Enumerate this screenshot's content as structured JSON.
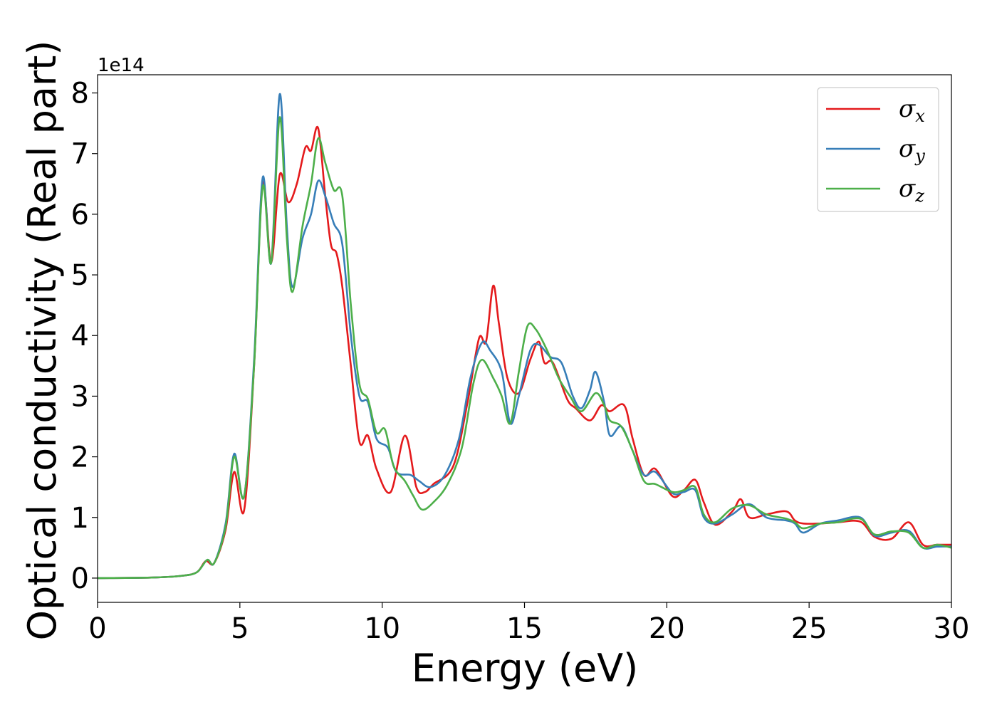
{
  "chart_data": {
    "type": "line",
    "title": "",
    "xlabel": "Energy (eV)",
    "ylabel": "Optical conductivity (Real part)",
    "y_offset_label": "1e14",
    "xlim": [
      0,
      30
    ],
    "ylim": [
      -0.4,
      8.3
    ],
    "x_ticks": [
      0,
      5,
      10,
      15,
      20,
      25,
      30
    ],
    "x_tick_labels": [
      "0",
      "5",
      "10",
      "15",
      "20",
      "25",
      "30"
    ],
    "y_ticks": [
      0,
      1,
      2,
      3,
      4,
      5,
      6,
      7,
      8
    ],
    "y_tick_labels": [
      "0",
      "1",
      "2",
      "3",
      "4",
      "5",
      "6",
      "7",
      "8"
    ],
    "grid": false,
    "legend_position": "top-right",
    "series": [
      {
        "name": "σx",
        "symbol": "σ",
        "subscript": "x",
        "color": "#e41a1c",
        "points": [
          [
            0,
            0
          ],
          [
            2,
            0.01
          ],
          [
            3,
            0.04
          ],
          [
            3.5,
            0.1
          ],
          [
            3.8,
            0.28
          ],
          [
            4.1,
            0.25
          ],
          [
            4.5,
            0.8
          ],
          [
            4.8,
            1.75
          ],
          [
            5.15,
            1.12
          ],
          [
            5.5,
            3.5
          ],
          [
            5.8,
            6.5
          ],
          [
            6.1,
            5.2
          ],
          [
            6.4,
            6.65
          ],
          [
            6.7,
            6.2
          ],
          [
            7,
            6.5
          ],
          [
            7.3,
            7.1
          ],
          [
            7.5,
            7.05
          ],
          [
            7.75,
            7.42
          ],
          [
            8.0,
            6.3
          ],
          [
            8.2,
            5.5
          ],
          [
            8.4,
            5.35
          ],
          [
            8.6,
            4.8
          ],
          [
            8.9,
            3.5
          ],
          [
            9.2,
            2.25
          ],
          [
            9.5,
            2.35
          ],
          [
            9.8,
            1.8
          ],
          [
            10.3,
            1.42
          ],
          [
            10.8,
            2.35
          ],
          [
            11.2,
            1.5
          ],
          [
            11.5,
            1.42
          ],
          [
            11.8,
            1.55
          ],
          [
            12.5,
            1.85
          ],
          [
            13,
            2.9
          ],
          [
            13.4,
            3.95
          ],
          [
            13.65,
            3.9
          ],
          [
            13.9,
            4.82
          ],
          [
            14.1,
            4.2
          ],
          [
            14.4,
            3.3
          ],
          [
            14.8,
            3.05
          ],
          [
            15.2,
            3.6
          ],
          [
            15.5,
            3.9
          ],
          [
            15.7,
            3.55
          ],
          [
            16,
            3.55
          ],
          [
            16.5,
            2.95
          ],
          [
            16.8,
            2.8
          ],
          [
            17.3,
            2.6
          ],
          [
            17.7,
            2.85
          ],
          [
            18,
            2.75
          ],
          [
            18.5,
            2.85
          ],
          [
            18.8,
            2.3
          ],
          [
            19.2,
            1.7
          ],
          [
            19.6,
            1.8
          ],
          [
            20.2,
            1.35
          ],
          [
            20.6,
            1.45
          ],
          [
            21,
            1.62
          ],
          [
            21.3,
            1.25
          ],
          [
            21.7,
            0.88
          ],
          [
            22.3,
            1.1
          ],
          [
            22.6,
            1.3
          ],
          [
            22.9,
            1.0
          ],
          [
            23.5,
            1.05
          ],
          [
            24.2,
            1.1
          ],
          [
            24.5,
            0.95
          ],
          [
            24.8,
            0.9
          ],
          [
            25.4,
            0.9
          ],
          [
            26,
            0.92
          ],
          [
            26.8,
            0.93
          ],
          [
            27.3,
            0.68
          ],
          [
            27.9,
            0.65
          ],
          [
            28.5,
            0.92
          ],
          [
            29,
            0.55
          ],
          [
            29.5,
            0.55
          ],
          [
            30,
            0.55
          ]
        ]
      },
      {
        "name": "σy",
        "symbol": "σ",
        "subscript": "y",
        "color": "#377eb8",
        "points": [
          [
            0,
            0
          ],
          [
            2,
            0.01
          ],
          [
            3,
            0.04
          ],
          [
            3.5,
            0.1
          ],
          [
            3.85,
            0.3
          ],
          [
            4.1,
            0.25
          ],
          [
            4.5,
            0.9
          ],
          [
            4.8,
            2.05
          ],
          [
            5.15,
            1.35
          ],
          [
            5.5,
            3.6
          ],
          [
            5.8,
            6.6
          ],
          [
            6.1,
            5.2
          ],
          [
            6.4,
            7.98
          ],
          [
            6.65,
            5.8
          ],
          [
            6.85,
            4.8
          ],
          [
            7.2,
            5.6
          ],
          [
            7.5,
            6.0
          ],
          [
            7.75,
            6.55
          ],
          [
            8.0,
            6.3
          ],
          [
            8.3,
            5.85
          ],
          [
            8.6,
            5.5
          ],
          [
            8.9,
            4.0
          ],
          [
            9.2,
            3.0
          ],
          [
            9.5,
            2.9
          ],
          [
            9.8,
            2.3
          ],
          [
            10.2,
            2.15
          ],
          [
            10.5,
            1.75
          ],
          [
            11,
            1.7
          ],
          [
            11.3,
            1.6
          ],
          [
            11.7,
            1.5
          ],
          [
            12.2,
            1.7
          ],
          [
            12.7,
            2.3
          ],
          [
            13.1,
            3.3
          ],
          [
            13.5,
            3.88
          ],
          [
            13.8,
            3.75
          ],
          [
            14.2,
            3.4
          ],
          [
            14.5,
            2.55
          ],
          [
            14.8,
            3.0
          ],
          [
            15.2,
            3.75
          ],
          [
            15.5,
            3.85
          ],
          [
            15.9,
            3.65
          ],
          [
            16.3,
            3.55
          ],
          [
            16.7,
            3.0
          ],
          [
            17.0,
            2.8
          ],
          [
            17.3,
            3.1
          ],
          [
            17.5,
            3.4
          ],
          [
            17.8,
            2.9
          ],
          [
            18.0,
            2.35
          ],
          [
            18.4,
            2.5
          ],
          [
            18.8,
            2.1
          ],
          [
            19.2,
            1.7
          ],
          [
            19.6,
            1.75
          ],
          [
            20.2,
            1.4
          ],
          [
            20.6,
            1.42
          ],
          [
            21,
            1.45
          ],
          [
            21.3,
            1.0
          ],
          [
            21.7,
            0.9
          ],
          [
            22.3,
            1.05
          ],
          [
            22.9,
            1.22
          ],
          [
            23.5,
            1.0
          ],
          [
            24.2,
            0.95
          ],
          [
            24.5,
            0.9
          ],
          [
            24.8,
            0.75
          ],
          [
            25.4,
            0.9
          ],
          [
            26,
            0.95
          ],
          [
            26.8,
            1.0
          ],
          [
            27.3,
            0.7
          ],
          [
            27.9,
            0.75
          ],
          [
            28.5,
            0.78
          ],
          [
            29,
            0.5
          ],
          [
            29.5,
            0.52
          ],
          [
            30,
            0.52
          ]
        ]
      },
      {
        "name": "σz",
        "symbol": "σ",
        "subscript": "z",
        "color": "#4daf4a",
        "points": [
          [
            0,
            0
          ],
          [
            2,
            0.01
          ],
          [
            3,
            0.04
          ],
          [
            3.5,
            0.1
          ],
          [
            3.85,
            0.3
          ],
          [
            4.1,
            0.25
          ],
          [
            4.5,
            0.85
          ],
          [
            4.8,
            2.0
          ],
          [
            5.15,
            1.35
          ],
          [
            5.5,
            3.5
          ],
          [
            5.8,
            6.45
          ],
          [
            6.1,
            5.2
          ],
          [
            6.4,
            7.6
          ],
          [
            6.65,
            5.6
          ],
          [
            6.85,
            4.72
          ],
          [
            7.2,
            5.8
          ],
          [
            7.5,
            6.5
          ],
          [
            7.75,
            7.25
          ],
          [
            8.0,
            6.85
          ],
          [
            8.3,
            6.4
          ],
          [
            8.6,
            6.3
          ],
          [
            8.9,
            4.5
          ],
          [
            9.2,
            3.2
          ],
          [
            9.5,
            2.95
          ],
          [
            9.8,
            2.4
          ],
          [
            10.1,
            2.45
          ],
          [
            10.4,
            1.85
          ],
          [
            10.8,
            1.6
          ],
          [
            11.1,
            1.35
          ],
          [
            11.4,
            1.13
          ],
          [
            11.8,
            1.25
          ],
          [
            12.3,
            1.55
          ],
          [
            12.8,
            2.15
          ],
          [
            13.2,
            3.2
          ],
          [
            13.5,
            3.6
          ],
          [
            13.9,
            3.3
          ],
          [
            14.2,
            3.0
          ],
          [
            14.5,
            2.55
          ],
          [
            14.8,
            3.4
          ],
          [
            15.1,
            4.15
          ],
          [
            15.4,
            4.1
          ],
          [
            15.8,
            3.75
          ],
          [
            16.2,
            3.3
          ],
          [
            16.6,
            3.0
          ],
          [
            17.0,
            2.75
          ],
          [
            17.5,
            3.05
          ],
          [
            17.8,
            2.85
          ],
          [
            18.0,
            2.6
          ],
          [
            18.4,
            2.5
          ],
          [
            18.8,
            2.1
          ],
          [
            19.2,
            1.6
          ],
          [
            19.6,
            1.55
          ],
          [
            20.2,
            1.42
          ],
          [
            20.6,
            1.45
          ],
          [
            21,
            1.5
          ],
          [
            21.3,
            1.05
          ],
          [
            21.7,
            0.92
          ],
          [
            22.3,
            1.15
          ],
          [
            22.9,
            1.2
          ],
          [
            23.5,
            1.05
          ],
          [
            24.2,
            0.98
          ],
          [
            24.5,
            0.92
          ],
          [
            24.8,
            0.82
          ],
          [
            25.4,
            0.9
          ],
          [
            26,
            0.92
          ],
          [
            26.8,
            0.98
          ],
          [
            27.3,
            0.72
          ],
          [
            27.9,
            0.77
          ],
          [
            28.5,
            0.75
          ],
          [
            29,
            0.5
          ],
          [
            29.5,
            0.55
          ],
          [
            30,
            0.5
          ]
        ]
      }
    ]
  }
}
